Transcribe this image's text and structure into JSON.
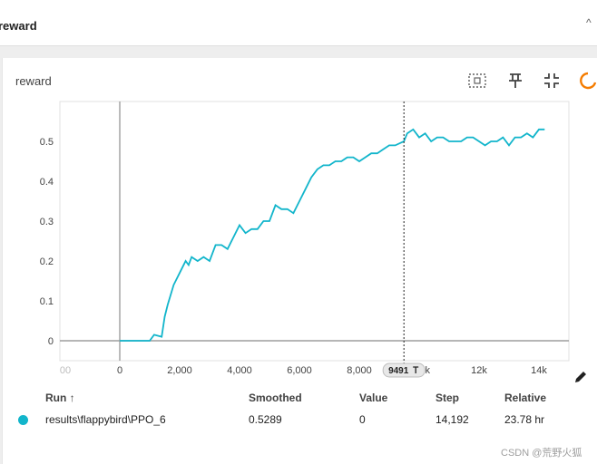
{
  "section": {
    "title": "reward",
    "collapse_glyph": "^"
  },
  "card": {
    "title": "reward"
  },
  "toolbar": {
    "icons": [
      "fit-domain-icon",
      "pin-icon",
      "collapse-icon",
      "settings-icon"
    ]
  },
  "chart_data": {
    "type": "line",
    "title": "reward",
    "x_ticks": [
      "0",
      "2,000",
      "4,000",
      "6,000",
      "8,000",
      "12k",
      "14k"
    ],
    "x_partial_left": "00",
    "x_partial_right": "k",
    "y_ticks": [
      "0",
      "0.1",
      "0.2",
      "0.3",
      "0.4",
      "0.5"
    ],
    "xlim": [
      -2000,
      15000
    ],
    "ylim": [
      -0.05,
      0.6
    ],
    "cursor": {
      "step": 9491,
      "label": "9491"
    },
    "raw_band": {
      "start": 1150,
      "end": 14192,
      "color": "#b8eff5"
    },
    "series": [
      {
        "color": "#12b5cb",
        "x": [
          0,
          1000,
          1150,
          1400,
          1500,
          1600,
          1800,
          2000,
          2200,
          2300,
          2400,
          2600,
          2800,
          3000,
          3100,
          3200,
          3400,
          3600,
          3800,
          4000,
          4200,
          4400,
          4600,
          4800,
          5000,
          5200,
          5400,
          5600,
          5800,
          6000,
          6200,
          6400,
          6600,
          6800,
          7000,
          7200,
          7400,
          7600,
          7800,
          8000,
          8200,
          8400,
          8600,
          8800,
          9000,
          9200,
          9491,
          9600,
          9800,
          10000,
          10200,
          10400,
          10600,
          10800,
          11000,
          11200,
          11400,
          11600,
          11800,
          12000,
          12200,
          12400,
          12600,
          12800,
          13000,
          13200,
          13400,
          13600,
          13800,
          14000,
          14192
        ],
        "y": [
          0,
          0,
          0.015,
          0.01,
          0.06,
          0.09,
          0.14,
          0.17,
          0.2,
          0.19,
          0.21,
          0.2,
          0.21,
          0.2,
          0.22,
          0.24,
          0.24,
          0.23,
          0.26,
          0.29,
          0.27,
          0.28,
          0.28,
          0.3,
          0.3,
          0.34,
          0.33,
          0.33,
          0.32,
          0.35,
          0.38,
          0.41,
          0.43,
          0.44,
          0.44,
          0.45,
          0.45,
          0.46,
          0.46,
          0.45,
          0.46,
          0.47,
          0.47,
          0.48,
          0.49,
          0.49,
          0.5,
          0.52,
          0.53,
          0.51,
          0.52,
          0.5,
          0.51,
          0.51,
          0.5,
          0.5,
          0.5,
          0.51,
          0.51,
          0.5,
          0.49,
          0.5,
          0.5,
          0.51,
          0.49,
          0.51,
          0.51,
          0.52,
          0.51,
          0.53,
          0.53
        ]
      }
    ]
  },
  "table": {
    "headers": {
      "run": "Run ↑",
      "smoothed": "Smoothed",
      "value": "Value",
      "step": "Step",
      "relative": "Relative"
    },
    "rows": [
      {
        "color": "#12b5cb",
        "run": "results\\flappybird\\PPO_6",
        "smoothed": "0.5289",
        "value": "0",
        "step": "14,192",
        "relative": "23.78 hr"
      }
    ]
  },
  "watermark": "CSDN @荒野火狐"
}
